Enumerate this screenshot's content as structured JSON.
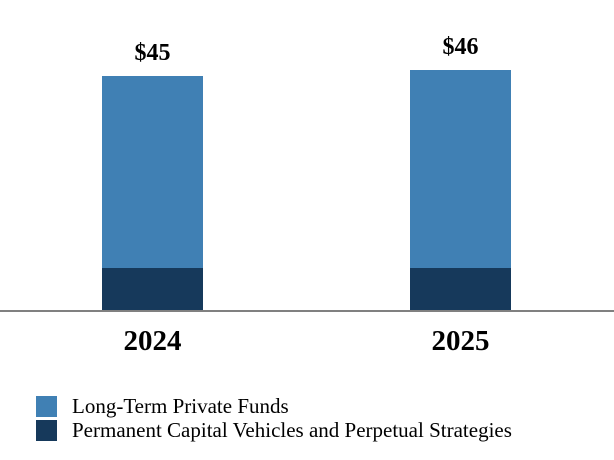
{
  "chart_data": {
    "type": "bar",
    "stacked": true,
    "title": "",
    "xlabel": "",
    "ylabel": "",
    "categories": [
      "2024",
      "2025"
    ],
    "series": [
      {
        "name": "Long-Term Private Funds",
        "color": "#4080B4",
        "values": [
          37,
          38
        ]
      },
      {
        "name": "Permanent Capital Vehicles and Perpetual Strategies",
        "color": "#16395B",
        "values": [
          8,
          8
        ]
      }
    ],
    "totals": [
      45,
      46
    ],
    "total_labels": [
      "$45",
      "$46"
    ],
    "axis_line_color": "#808080",
    "grid": false,
    "legend_position": "bottom-left",
    "background_color": "#FFFFFF",
    "text_color": "#000000"
  }
}
